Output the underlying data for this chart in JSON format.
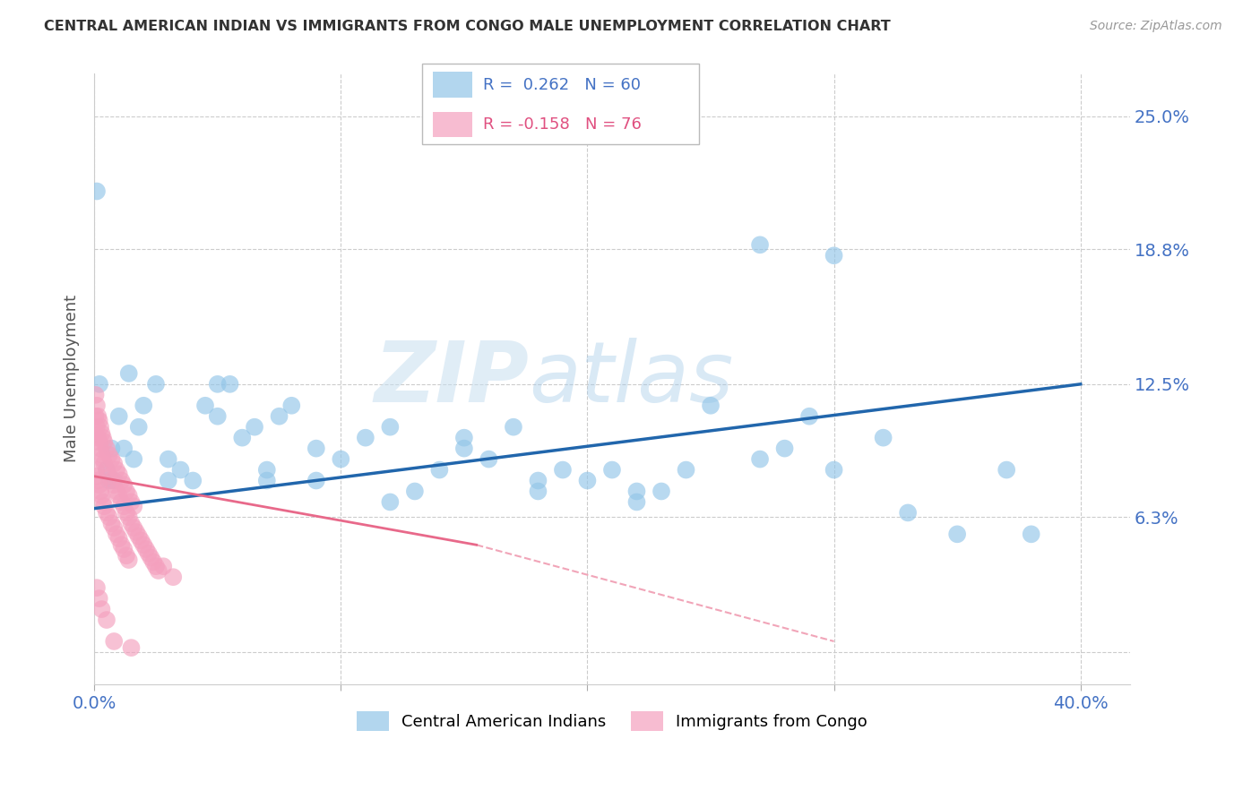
{
  "title": "CENTRAL AMERICAN INDIAN VS IMMIGRANTS FROM CONGO MALE UNEMPLOYMENT CORRELATION CHART",
  "source": "Source: ZipAtlas.com",
  "ylabel": "Male Unemployment",
  "watermark_zip": "ZIP",
  "watermark_atlas": "atlas",
  "blue_color": "#92c5e8",
  "pink_color": "#f4a0be",
  "blue_line_color": "#2166ac",
  "pink_line_color": "#e8698a",
  "xlim": [
    0.0,
    0.42
  ],
  "ylim": [
    -0.015,
    0.27
  ],
  "y_ticks": [
    0.0,
    0.063,
    0.125,
    0.188,
    0.25
  ],
  "y_labels": [
    "",
    "6.3%",
    "12.5%",
    "18.8%",
    "25.0%"
  ],
  "x_ticks": [
    0.0,
    0.1,
    0.2,
    0.3,
    0.4
  ],
  "x_labels": [
    "0.0%",
    "",
    "",
    "",
    "40.0%"
  ],
  "blue_x": [
    0.1,
    0.21,
    0.5,
    0.6,
    0.7,
    0.8,
    1.0,
    1.2,
    1.4,
    1.6,
    1.8,
    2.0,
    2.5,
    3.0,
    3.5,
    4.0,
    4.5,
    5.0,
    5.5,
    6.0,
    6.5,
    7.0,
    7.5,
    8.0,
    9.0,
    10.0,
    11.0,
    12.0,
    13.0,
    14.0,
    15.0,
    16.0,
    17.0,
    18.0,
    19.0,
    20.0,
    21.0,
    22.0,
    23.0,
    24.0,
    25.0,
    27.0,
    28.0,
    29.0,
    30.0,
    32.0,
    33.0,
    35.0,
    37.0,
    38.0,
    3.0,
    5.0,
    7.0,
    9.0,
    12.0,
    15.0,
    18.0,
    22.0,
    27.0,
    30.0
  ],
  "blue_y": [
    21.5,
    12.5,
    8.5,
    8.0,
    9.5,
    8.0,
    11.0,
    9.5,
    13.0,
    9.0,
    10.5,
    11.5,
    12.5,
    9.0,
    8.5,
    8.0,
    11.5,
    11.0,
    12.5,
    10.0,
    10.5,
    8.0,
    11.0,
    11.5,
    9.5,
    9.0,
    10.0,
    10.5,
    7.5,
    8.5,
    9.5,
    9.0,
    10.5,
    8.0,
    8.5,
    8.0,
    8.5,
    7.5,
    7.5,
    8.5,
    11.5,
    9.0,
    9.5,
    11.0,
    8.5,
    10.0,
    6.5,
    5.5,
    8.5,
    5.5,
    8.0,
    12.5,
    8.5,
    8.0,
    7.0,
    10.0,
    7.5,
    7.0,
    19.0,
    18.5
  ],
  "pink_x": [
    0.05,
    0.1,
    0.15,
    0.2,
    0.25,
    0.3,
    0.35,
    0.4,
    0.5,
    0.6,
    0.7,
    0.8,
    0.9,
    1.0,
    1.1,
    1.2,
    1.3,
    1.4,
    1.5,
    1.6,
    1.7,
    1.8,
    1.9,
    2.0,
    2.1,
    2.2,
    2.3,
    2.4,
    2.5,
    2.6,
    0.05,
    0.1,
    0.15,
    0.2,
    0.25,
    0.3,
    0.35,
    0.4,
    0.5,
    0.6,
    0.7,
    0.8,
    0.9,
    1.0,
    1.1,
    1.2,
    1.3,
    1.4,
    1.5,
    1.6,
    0.05,
    0.1,
    0.15,
    0.2,
    0.25,
    0.3,
    0.35,
    0.4,
    0.5,
    0.6,
    0.7,
    0.8,
    0.9,
    1.0,
    1.1,
    1.2,
    1.3,
    1.4,
    2.8,
    3.2,
    0.1,
    0.2,
    0.3,
    0.5,
    0.8,
    1.5
  ],
  "pink_y": [
    11.0,
    10.5,
    10.0,
    9.8,
    9.5,
    9.2,
    9.0,
    8.8,
    8.5,
    8.2,
    8.0,
    7.8,
    7.5,
    7.3,
    7.0,
    6.8,
    6.5,
    6.3,
    6.0,
    5.8,
    5.6,
    5.4,
    5.2,
    5.0,
    4.8,
    4.6,
    4.4,
    4.2,
    4.0,
    3.8,
    12.0,
    11.5,
    11.0,
    10.8,
    10.5,
    10.2,
    10.0,
    9.8,
    9.5,
    9.2,
    9.0,
    8.8,
    8.5,
    8.3,
    8.0,
    7.8,
    7.5,
    7.3,
    7.0,
    6.8,
    8.5,
    8.2,
    8.0,
    7.8,
    7.5,
    7.3,
    7.0,
    6.8,
    6.5,
    6.3,
    6.0,
    5.8,
    5.5,
    5.3,
    5.0,
    4.8,
    4.5,
    4.3,
    4.0,
    3.5,
    3.0,
    2.5,
    2.0,
    1.5,
    0.5,
    0.2
  ],
  "legend_r1_label": "R =  0.262   N = 60",
  "legend_r2_label": "R = -0.158   N = 76",
  "legend_color1": "#4472c4",
  "legend_color2": "#e05080"
}
